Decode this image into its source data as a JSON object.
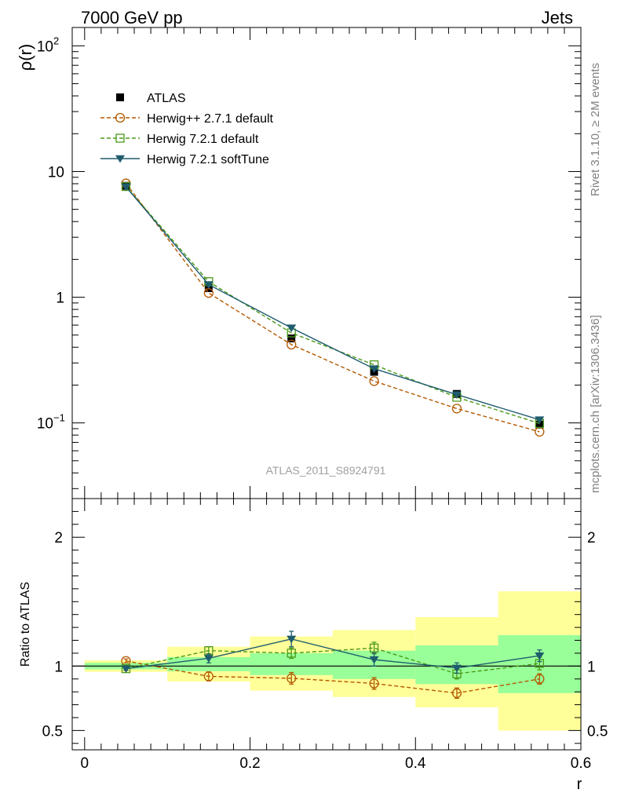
{
  "header": {
    "left": "7000 GeV pp",
    "right": "Jets"
  },
  "side_text": {
    "top": "Rivet 3.1.10, ≥ 2M events",
    "bottom": "mcplots.cern.ch [arXiv:1306.3436]"
  },
  "watermark": "ATLAS_2011_S8924791",
  "chart_data": [
    {
      "type": "scatter",
      "ylabel": "ρ(r)",
      "yscale": "log",
      "ylim": [
        0.025,
        140
      ],
      "xlim": [
        -0.015,
        0.6
      ],
      "y_ticks": [
        {
          "v": 100,
          "base": "10",
          "exp": "2"
        },
        {
          "v": 10,
          "base": "10",
          "exp": ""
        },
        {
          "v": 1,
          "base": "1",
          "exp": ""
        },
        {
          "v": 0.1,
          "base": "10",
          "exp": "−1"
        }
      ],
      "legend_position": "top-left",
      "x": [
        0.05,
        0.15,
        0.25,
        0.35,
        0.45,
        0.55
      ],
      "series": [
        {
          "name": "ATLAS",
          "color": "#000000",
          "marker": "filled-square",
          "line": "none",
          "values": [
            7.7,
            1.18,
            0.47,
            0.255,
            0.17,
            0.097
          ]
        },
        {
          "name": "Herwig++ 2.7.1 default",
          "color": "#b35900",
          "marker": "open-circle",
          "line": "dashed",
          "values": [
            8.05,
            1.08,
            0.42,
            0.215,
            0.13,
            0.085
          ]
        },
        {
          "name": "Herwig 7.2.1 default",
          "color": "#4c9a1a",
          "marker": "open-square",
          "line": "dashed",
          "values": [
            7.6,
            1.33,
            0.52,
            0.29,
            0.16,
            0.099
          ]
        },
        {
          "name": "Herwig 7.2.1 softTune",
          "color": "#1f5c6e",
          "marker": "filled-triangle-down",
          "line": "solid",
          "values": [
            7.55,
            1.26,
            0.57,
            0.27,
            0.168,
            0.106
          ]
        }
      ]
    },
    {
      "type": "scatter",
      "ylabel": "Ratio to ATLAS",
      "xlabel": "r",
      "ylim": [
        0.35,
        2.3
      ],
      "xlim": [
        -0.015,
        0.6
      ],
      "y_ticks": [
        "0.5",
        "1",
        "2"
      ],
      "x_ticks": [
        "0",
        "0.2",
        "0.4",
        "0.6"
      ],
      "bands": [
        {
          "x0": 0.0,
          "x1": 0.1,
          "inner": [
            0.975,
            1.025
          ],
          "outer": [
            0.955,
            1.045
          ]
        },
        {
          "x0": 0.1,
          "x1": 0.2,
          "inner": [
            0.96,
            1.07
          ],
          "outer": [
            0.88,
            1.15
          ]
        },
        {
          "x0": 0.2,
          "x1": 0.3,
          "inner": [
            0.93,
            1.1
          ],
          "outer": [
            0.81,
            1.23
          ]
        },
        {
          "x0": 0.3,
          "x1": 0.4,
          "inner": [
            0.9,
            1.12
          ],
          "outer": [
            0.76,
            1.28
          ]
        },
        {
          "x0": 0.4,
          "x1": 0.5,
          "inner": [
            0.86,
            1.16
          ],
          "outer": [
            0.68,
            1.38
          ]
        },
        {
          "x0": 0.5,
          "x1": 0.6,
          "inner": [
            0.79,
            1.24
          ],
          "outer": [
            0.5,
            1.58
          ]
        }
      ],
      "band_colors": {
        "inner": "#99ff99",
        "outer": "#ffff99"
      },
      "x": [
        0.05,
        0.15,
        0.25,
        0.35,
        0.45,
        0.55
      ],
      "series": [
        {
          "name": "Herwig++ 2.7.1 default",
          "color": "#b35900",
          "marker": "open-circle",
          "line": "dashed",
          "values": [
            1.04,
            0.92,
            0.905,
            0.865,
            0.79,
            0.9
          ],
          "errors": [
            0.015,
            0.035,
            0.045,
            0.045,
            0.04,
            0.04
          ]
        },
        {
          "name": "Herwig 7.2.1 default",
          "color": "#4c9a1a",
          "marker": "open-square",
          "line": "dashed",
          "values": [
            0.98,
            1.12,
            1.1,
            1.14,
            0.94,
            1.02
          ],
          "errors": [
            0.012,
            0.03,
            0.04,
            0.045,
            0.04,
            0.05
          ]
        },
        {
          "name": "Herwig 7.2.1 softTune",
          "color": "#1f5c6e",
          "marker": "filled-triangle-down",
          "line": "solid",
          "values": [
            0.98,
            1.06,
            1.21,
            1.05,
            0.985,
            1.08
          ],
          "errors": [
            0.012,
            0.035,
            0.06,
            0.05,
            0.04,
            0.045
          ]
        }
      ]
    }
  ]
}
